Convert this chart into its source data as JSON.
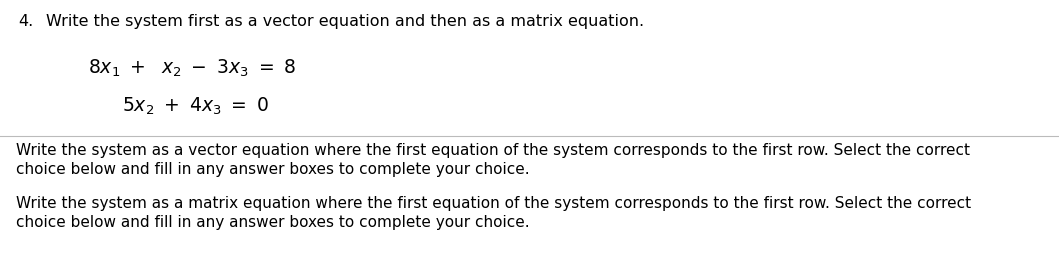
{
  "background_color": "#ffffff",
  "question_number": "4.",
  "question_text": "Write the system first as a vector equation and then as a matrix equation.",
  "eq1": "$8x_1\\ +\\ \\ x_2\\ -\\ 3x_3\\ =\\ 8$",
  "eq2": "$5x_2\\ +\\ 4x_3\\ =\\ 0$",
  "part_a_line1": "Write the system as a vector equation where the first equation of the system corresponds to the first row. Select the correct",
  "part_a_line2": "choice below and fill in any answer boxes to complete your choice.",
  "part_b_line1": "Write the system as a matrix equation where the first equation of the system corresponds to the first row. Select the correct",
  "part_b_line2": "choice below and fill in any answer boxes to complete your choice.",
  "header_fontsize": 11.5,
  "eq_fontsize": 13.5,
  "body_fontsize": 11.0,
  "text_color": "#000000",
  "divider_color": "#bbbbbb",
  "fig_width": 10.59,
  "fig_height": 2.64,
  "dpi": 100
}
